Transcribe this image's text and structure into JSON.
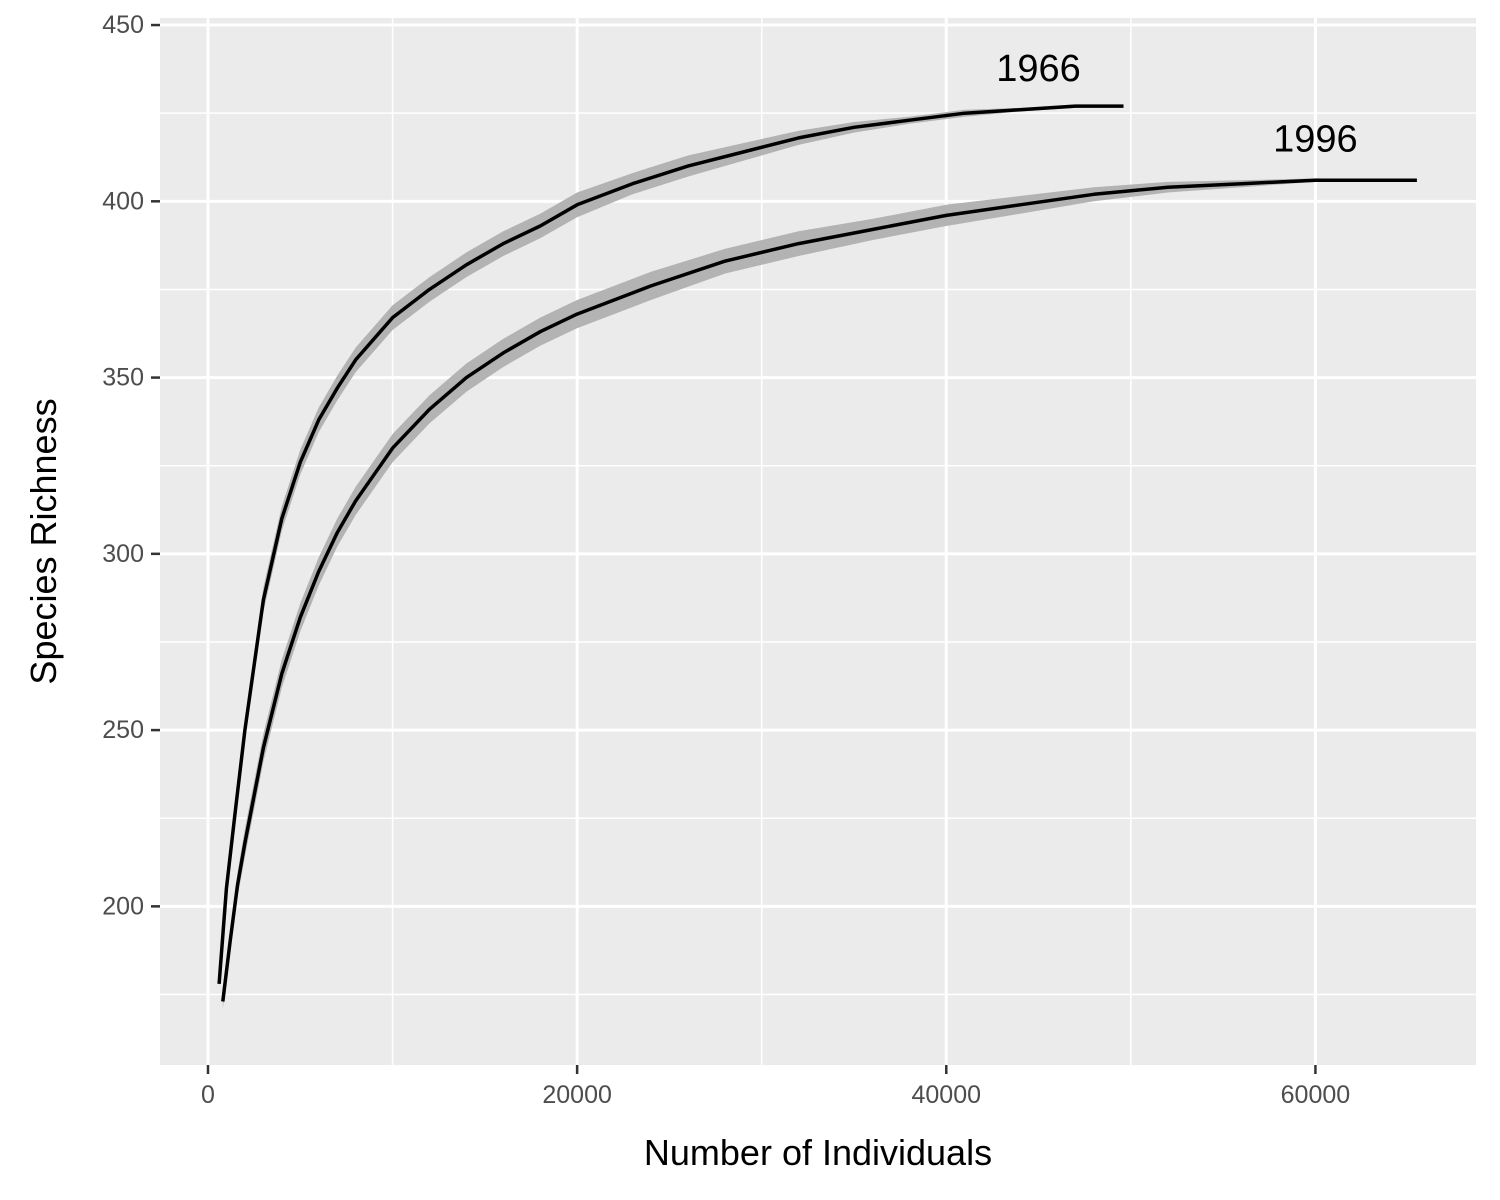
{
  "chart_data": {
    "type": "line",
    "title": "",
    "xlabel": "Number of Individuals",
    "ylabel": "Species Richness",
    "xlim": [
      -2600,
      68700
    ],
    "ylim": [
      155,
      452
    ],
    "x_ticks": [
      0,
      20000,
      40000,
      60000
    ],
    "x_tick_labels": [
      "0",
      "20000",
      "40000",
      "60000"
    ],
    "y_ticks": [
      200,
      250,
      300,
      350,
      400,
      450
    ],
    "y_tick_labels": [
      "200",
      "250",
      "300",
      "350",
      "400",
      "450"
    ],
    "grid": true,
    "legend": "none",
    "colors": {
      "panel": "#ebebeb",
      "grid": "#ffffff",
      "line": "#000000",
      "ribbon": "#b3b3b3"
    },
    "series": [
      {
        "name": "1966",
        "label_at": [
          45000,
          437
        ],
        "x": [
          600,
          1000,
          1500,
          2000,
          3000,
          4000,
          5000,
          6000,
          7000,
          8000,
          10000,
          12000,
          14000,
          16000,
          18000,
          20000,
          23000,
          26000,
          29000,
          32000,
          35000,
          38000,
          41000,
          44000,
          47000,
          49600
        ],
        "y": [
          178,
          205,
          228,
          250,
          287,
          310,
          326,
          338,
          347,
          355,
          367,
          375,
          382,
          388,
          393,
          399,
          405,
          410,
          414,
          418,
          421,
          423,
          425,
          426,
          427,
          427
        ],
        "ci_half_width": [
          1,
          2,
          3,
          3,
          3.5,
          3.5,
          3.5,
          3.5,
          3.5,
          3.5,
          3.5,
          3.5,
          3.5,
          3.5,
          3.5,
          3.5,
          3,
          3,
          2.5,
          2,
          1.5,
          1,
          1,
          0.5,
          0.5,
          0
        ]
      },
      {
        "name": "1996",
        "label_at": [
          60000,
          417
        ],
        "x": [
          800,
          1200,
          1600,
          2000,
          3000,
          4000,
          5000,
          6000,
          7000,
          8000,
          10000,
          12000,
          14000,
          16000,
          18000,
          20000,
          24000,
          28000,
          32000,
          36000,
          40000,
          44000,
          48000,
          52000,
          56000,
          60000,
          65500
        ],
        "y": [
          173,
          190,
          206,
          218,
          245,
          266,
          282,
          295,
          306,
          315,
          330,
          341,
          350,
          357,
          363,
          368,
          376,
          383,
          388,
          392,
          396,
          399,
          402,
          404,
          405,
          406,
          406
        ],
        "ci_half_width": [
          2,
          3,
          3.5,
          4,
          4,
          4,
          4,
          4,
          4,
          4,
          4,
          4,
          4,
          4,
          4,
          4,
          4,
          3.5,
          3.5,
          3,
          3,
          2.5,
          2,
          1.5,
          1,
          0.5,
          0
        ]
      }
    ]
  }
}
